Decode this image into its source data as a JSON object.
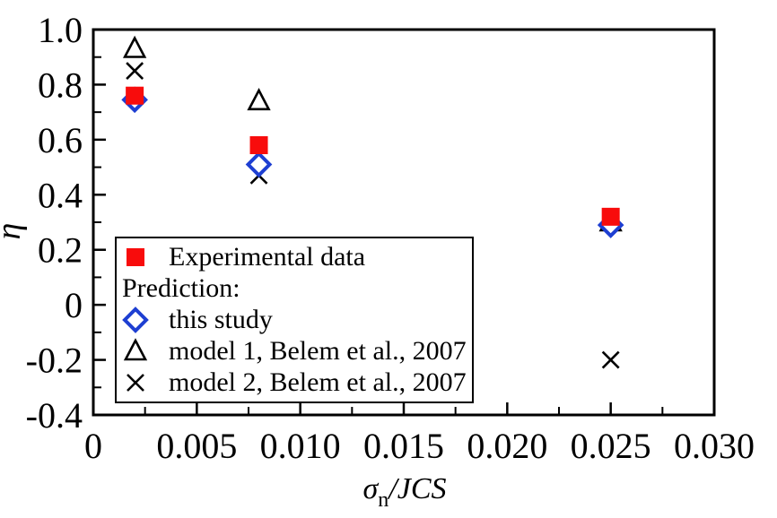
{
  "page": {
    "background": "#ffffff"
  },
  "chart_data": {
    "type": "scatter",
    "title": "",
    "ylabel": "η",
    "xlabel_sigma": "σ",
    "xlabel_sub": "n",
    "xlabel_rest": "/JCS",
    "xlim": [
      0,
      0.03
    ],
    "ylim": [
      -0.4,
      1.0
    ],
    "x_major_ticks": [
      0,
      0.005,
      0.01,
      0.015,
      0.02,
      0.025,
      0.03
    ],
    "x_tick_labels": [
      "0",
      "0.005",
      "0.010",
      "0.015",
      "0.020",
      "0.025",
      "0.030"
    ],
    "x_minor_step": 0.0025,
    "y_major_ticks": [
      -0.4,
      -0.2,
      0,
      0.2,
      0.4,
      0.6,
      0.8,
      1.0
    ],
    "y_tick_labels": [
      "-0.4",
      "-0.2",
      "0",
      "0.2",
      "0.4",
      "0.6",
      "0.8",
      "1.0"
    ],
    "y_minor_step": 0.1,
    "grid": false,
    "legend_position": "inside-bottom-left",
    "series": [
      {
        "name": "model 1, Belem et al., 2007",
        "marker": "triangle-open",
        "color": "#000000",
        "fill": "#ffffff",
        "points": [
          [
            0.002,
            0.93
          ],
          [
            0.008,
            0.74
          ],
          [
            0.025,
            0.3
          ]
        ]
      },
      {
        "name": "model 2, Belem et al., 2007",
        "marker": "x-cross",
        "color": "#000000",
        "fill": "none",
        "points": [
          [
            0.002,
            0.85
          ],
          [
            0.008,
            0.47
          ],
          [
            0.025,
            -0.2
          ]
        ]
      },
      {
        "name": "this study",
        "marker": "diamond-open",
        "color": "#1E3FD2",
        "fill": "#ffffff",
        "points": [
          [
            0.002,
            0.745
          ],
          [
            0.008,
            0.51
          ],
          [
            0.025,
            0.29
          ]
        ]
      },
      {
        "name": "Experimental data",
        "marker": "square-filled",
        "color": "#F80C0C",
        "fill": "#F80C0C",
        "points": [
          [
            0.002,
            0.76
          ],
          [
            0.008,
            0.58
          ],
          [
            0.025,
            0.32
          ]
        ]
      }
    ]
  },
  "legend": {
    "items": [
      {
        "label": "Experimental data",
        "marker": "square-filled",
        "color": "#F80C0C",
        "fill": "#F80C0C"
      },
      {
        "label": "Prediction:",
        "marker": "none",
        "color": "#000000",
        "fill": "none"
      },
      {
        "label": "this study",
        "marker": "diamond-open",
        "color": "#1E3FD2",
        "fill": "#ffffff"
      },
      {
        "label": "model 1, Belem et al., 2007",
        "marker": "triangle-open",
        "color": "#000000",
        "fill": "#ffffff"
      },
      {
        "label": "model 2, Belem et al., 2007",
        "marker": "x-cross",
        "color": "#000000",
        "fill": "none"
      }
    ]
  }
}
